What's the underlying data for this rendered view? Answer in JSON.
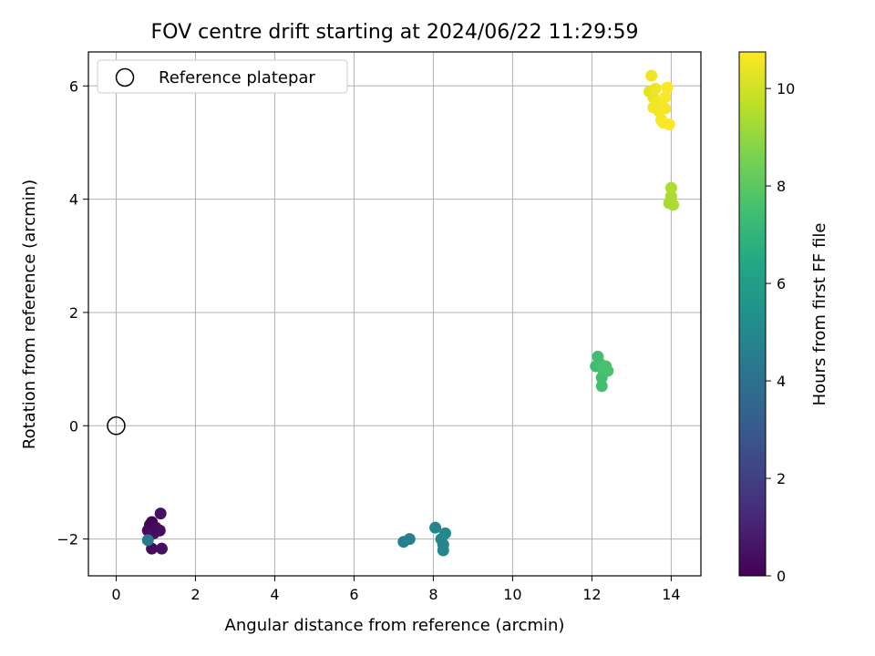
{
  "chart_data": {
    "type": "scatter",
    "title": "FOV centre drift starting at 2024/06/22 11:29:59",
    "xlabel": "Angular distance from reference (arcmin)",
    "ylabel": "Rotation from reference (arcmin)",
    "xlim": [
      -0.7,
      14.75
    ],
    "ylim": [
      -2.65,
      6.6
    ],
    "xticks": [
      0,
      2,
      4,
      6,
      8,
      10,
      12,
      14
    ],
    "yticks": [
      -2,
      0,
      2,
      4,
      6
    ],
    "grid": true,
    "legend": {
      "placement": "upper-left",
      "entries": [
        "Reference platepar"
      ]
    },
    "reference_point": {
      "x": 0,
      "y": 0,
      "label": "Reference platepar"
    },
    "colorbar": {
      "label": "Hours from first FF file",
      "range": [
        0,
        10.75
      ],
      "ticks": [
        0,
        2,
        4,
        6,
        8,
        10
      ],
      "colormap": "viridis"
    },
    "points": [
      {
        "x": 0.8,
        "y": -1.85,
        "c": 0.2
      },
      {
        "x": 0.85,
        "y": -1.75,
        "c": 0.3
      },
      {
        "x": 0.9,
        "y": -1.7,
        "c": 0.1
      },
      {
        "x": 0.95,
        "y": -1.9,
        "c": 0.4
      },
      {
        "x": 1.0,
        "y": -1.8,
        "c": 0.25
      },
      {
        "x": 1.1,
        "y": -1.85,
        "c": 0.35
      },
      {
        "x": 1.12,
        "y": -1.55,
        "c": 0.5
      },
      {
        "x": 0.9,
        "y": -2.17,
        "c": 0.3
      },
      {
        "x": 1.15,
        "y": -2.17,
        "c": 0.45
      },
      {
        "x": 0.8,
        "y": -2.02,
        "c": 4.4
      },
      {
        "x": 7.25,
        "y": -2.05,
        "c": 4.6
      },
      {
        "x": 7.4,
        "y": -2.0,
        "c": 4.7
      },
      {
        "x": 8.05,
        "y": -1.8,
        "c": 4.8
      },
      {
        "x": 8.2,
        "y": -2.0,
        "c": 4.9
      },
      {
        "x": 8.3,
        "y": -1.9,
        "c": 5.0
      },
      {
        "x": 8.25,
        "y": -2.1,
        "c": 4.85
      },
      {
        "x": 8.25,
        "y": -2.2,
        "c": 4.95
      },
      {
        "x": 12.1,
        "y": 1.05,
        "c": 7.4
      },
      {
        "x": 12.15,
        "y": 1.22,
        "c": 7.45
      },
      {
        "x": 12.2,
        "y": 1.1,
        "c": 7.5
      },
      {
        "x": 12.3,
        "y": 0.95,
        "c": 7.55
      },
      {
        "x": 12.35,
        "y": 1.05,
        "c": 7.6
      },
      {
        "x": 12.4,
        "y": 0.97,
        "c": 7.65
      },
      {
        "x": 12.25,
        "y": 0.85,
        "c": 7.5
      },
      {
        "x": 12.25,
        "y": 0.7,
        "c": 7.55
      },
      {
        "x": 12.3,
        "y": 1.0,
        "c": 7.6
      },
      {
        "x": 13.95,
        "y": 3.93,
        "c": 9.3
      },
      {
        "x": 14.05,
        "y": 3.9,
        "c": 9.35
      },
      {
        "x": 14.0,
        "y": 4.05,
        "c": 9.4
      },
      {
        "x": 14.0,
        "y": 4.2,
        "c": 9.45
      },
      {
        "x": 13.45,
        "y": 5.9,
        "c": 10.3
      },
      {
        "x": 13.5,
        "y": 6.18,
        "c": 10.5
      },
      {
        "x": 13.55,
        "y": 5.8,
        "c": 10.4
      },
      {
        "x": 13.55,
        "y": 5.62,
        "c": 10.6
      },
      {
        "x": 13.6,
        "y": 5.95,
        "c": 10.5
      },
      {
        "x": 13.65,
        "y": 5.7,
        "c": 10.55
      },
      {
        "x": 13.7,
        "y": 5.55,
        "c": 10.6
      },
      {
        "x": 13.75,
        "y": 5.4,
        "c": 10.6
      },
      {
        "x": 13.8,
        "y": 5.35,
        "c": 10.7
      },
      {
        "x": 13.85,
        "y": 5.6,
        "c": 10.65
      },
      {
        "x": 13.85,
        "y": 5.8,
        "c": 10.7
      },
      {
        "x": 13.9,
        "y": 5.97,
        "c": 10.7
      },
      {
        "x": 13.95,
        "y": 5.32,
        "c": 10.75
      }
    ]
  }
}
